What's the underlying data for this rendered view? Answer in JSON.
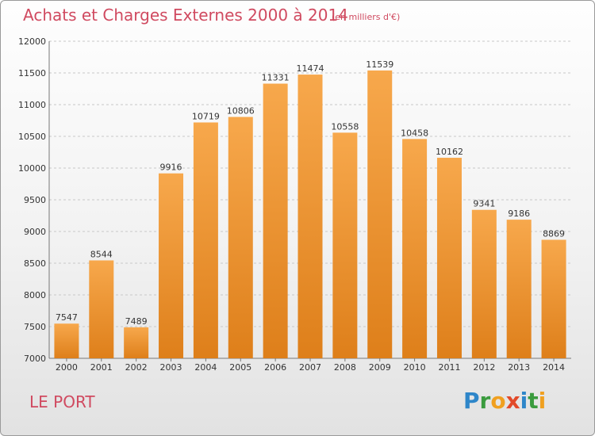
{
  "header": {
    "title": "Achats et Charges Externes 2000 à 2014",
    "subtitle": "(en milliers d'€)"
  },
  "footer": {
    "commune": "LE PORT",
    "logo_letters": [
      {
        "char": "P",
        "color": "#2e86c9"
      },
      {
        "char": "r",
        "color": "#3a9b3e"
      },
      {
        "char": "o",
        "color": "#f0a020"
      },
      {
        "char": "x",
        "color": "#e24a2a"
      },
      {
        "char": "i",
        "color": "#2e86c9"
      },
      {
        "char": "t",
        "color": "#3a9b3e"
      },
      {
        "char": "i",
        "color": "#f0a020"
      }
    ]
  },
  "colors": {
    "bar_top": "#f7a84c",
    "bar_bottom": "#de7f1a",
    "title": "#d04a60",
    "grid": "#c8c8c8",
    "text": "#333333"
  },
  "chart_data": {
    "type": "bar",
    "title": "Achats et Charges Externes 2000 à 2014",
    "subtitle": "(en milliers d'€)",
    "categories": [
      "2000",
      "2001",
      "2002",
      "2003",
      "2004",
      "2005",
      "2006",
      "2007",
      "2008",
      "2009",
      "2010",
      "2011",
      "2012",
      "2013",
      "2014"
    ],
    "values": [
      7547,
      8544,
      7489,
      9916,
      10719,
      10806,
      11331,
      11474,
      10558,
      11539,
      10458,
      10162,
      9341,
      9186,
      8869
    ],
    "ylim": [
      7000,
      12000
    ],
    "yticks": [
      7000,
      7500,
      8000,
      8500,
      9000,
      9500,
      10000,
      10500,
      11000,
      11500,
      12000
    ],
    "grid": true,
    "xlabel": "",
    "ylabel": ""
  }
}
